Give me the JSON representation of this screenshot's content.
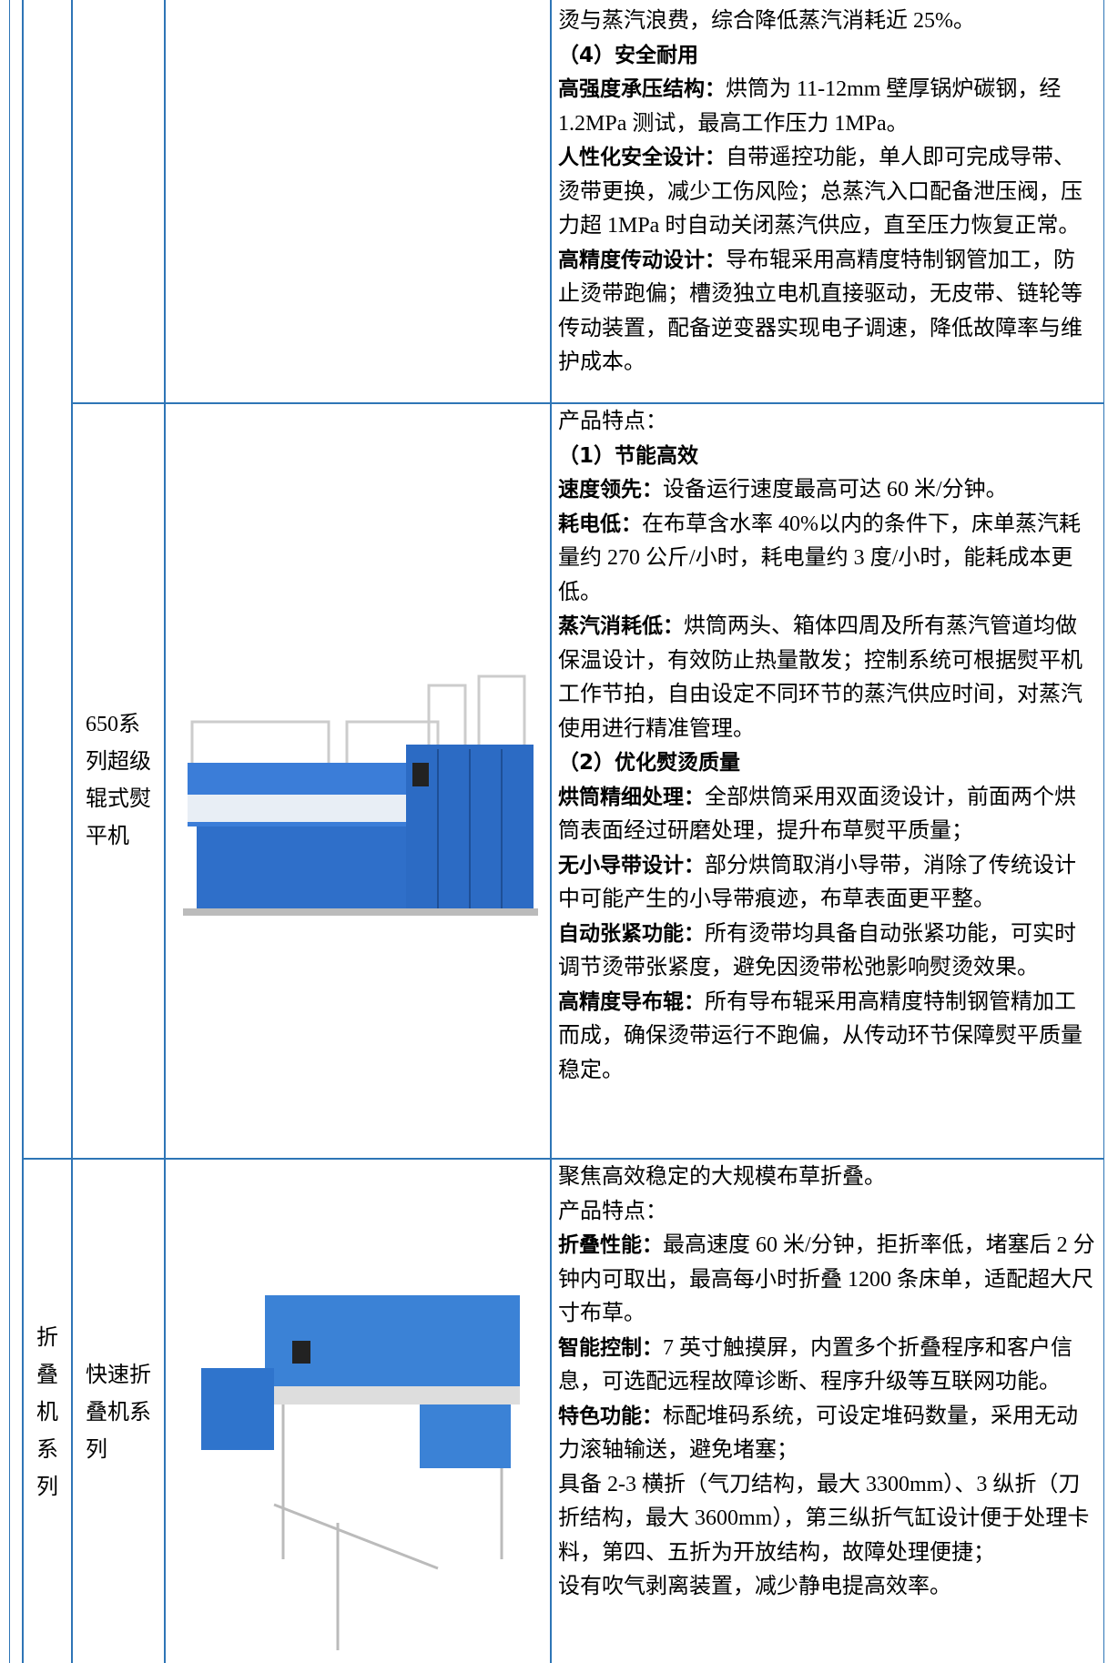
{
  "rows": [
    {
      "description": [
        {
          "text": "烫与蒸汽浪费，综合降低蒸汽消耗近 25%。"
        },
        {
          "heading": "（4）安全耐用"
        },
        {
          "label": "高强度承压结构：",
          "text": "烘筒为 11-12mm 壁厚锅炉碳钢，经 1.2MPa 测试，最高工作压力 1MPa。"
        },
        {
          "label": "人性化安全设计：",
          "text": "自带遥控功能，单人即可完成导带、烫带更换，减少工伤风险；总蒸汽入口配备泄压阀，压力超 1MPa 时自动关闭蒸汽供应，直至压力恢复正常。"
        },
        {
          "label": "高精度传动设计：",
          "text": "导布辊采用高精度特制钢管加工，防止烫带跑偏；槽烫独立电机直接驱动，无皮带、链轮等传动装置，配备逆变器实现电子调速，降低故障率与维护成本。"
        }
      ]
    },
    {
      "name": "650系列超级辊式熨平机",
      "description": [
        {
          "text": "产品特点："
        },
        {
          "heading": "（1）节能高效"
        },
        {
          "label": "速度领先：",
          "text": "设备运行速度最高可达 60 米/分钟。"
        },
        {
          "label": "耗电低：",
          "text": "在布草含水率 40%以内的条件下，床单蒸汽耗量约 270 公斤/小时，耗电量约 3 度/小时，能耗成本更低。"
        },
        {
          "label": "蒸汽消耗低：",
          "text": "烘筒两头、箱体四周及所有蒸汽管道均做保温设计，有效防止热量散发；控制系统可根据熨平机工作节拍，自由设定不同环节的蒸汽供应时间，对蒸汽使用进行精准管理。"
        },
        {
          "heading": "（2）优化熨烫质量"
        },
        {
          "label": "烘筒精细处理：",
          "text": "全部烘筒采用双面烫设计，前面两个烘筒表面经过研磨处理，提升布草熨平质量；"
        },
        {
          "label": "无小导带设计：",
          "text": "部分烘筒取消小导带，消除了传统设计中可能产生的小导带痕迹，布草表面更平整。"
        },
        {
          "label": "自动张紧功能：",
          "text": "所有烫带均具备自动张紧功能，可实时调节烫带张紧度，避免因烫带松弛影响熨烫效果。"
        },
        {
          "label": "高精度导布辊：",
          "text": "所有导布辊采用高精度特制钢管精加工而成，确保烫带运行不跑偏，从传动环节保障熨平质量稳定。"
        }
      ]
    },
    {
      "category": "折叠机系列",
      "name": "快速折叠机系列",
      "description": [
        {
          "text": "聚焦高效稳定的大规模布草折叠。"
        },
        {
          "text": "产品特点："
        },
        {
          "label": "折叠性能：",
          "text": "最高速度 60 米/分钟，拒折率低，堵塞后 2 分钟内可取出，最高每小时折叠 1200 条床单，适配超大尺寸布草。"
        },
        {
          "label": "智能控制：",
          "text": "7 英寸触摸屏，内置多个折叠程序和客户信息，可选配远程故障诊断、程序升级等互联网功能。"
        },
        {
          "label": "特色功能：",
          "text": "标配堆码系统，可设定堆码数量，采用无动力滚轴输送，避免堵塞；"
        },
        {
          "text": "具备 2-3 横折（气刀结构，最大 3300mm）、3 纵折（刀折结构，最大 3600mm），第三纵折气缸设计便于处理卡料，第四、五折为开放结构，故障处理便捷；"
        },
        {
          "text": "设有吹气剥离装置，减少静电提高效率。"
        }
      ]
    }
  ]
}
